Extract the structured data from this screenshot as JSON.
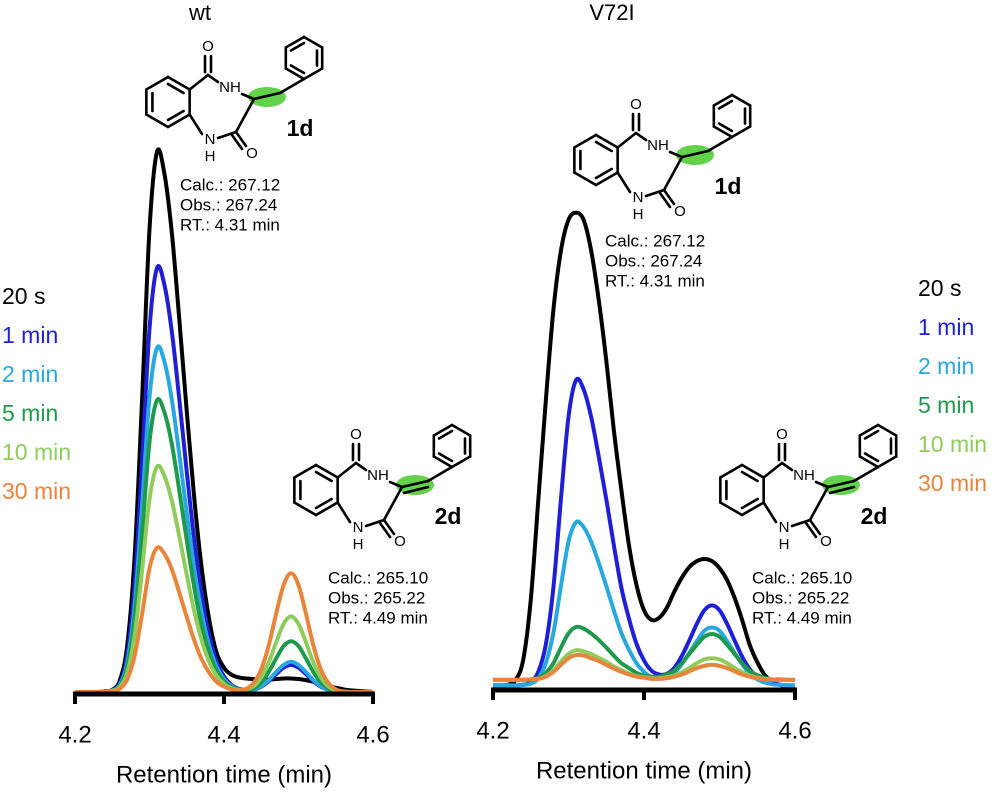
{
  "chart_data": [
    {
      "type": "line",
      "title": "wt",
      "x_label": "Retention time (min)",
      "x": [
        4.2,
        4.21,
        4.22,
        4.23,
        4.24,
        4.25,
        4.26,
        4.27,
        4.28,
        4.29,
        4.3,
        4.31,
        4.32,
        4.33,
        4.34,
        4.35,
        4.36,
        4.37,
        4.38,
        4.39,
        4.4,
        4.41,
        4.42,
        4.43,
        4.44,
        4.45,
        4.46,
        4.47,
        4.48,
        4.49,
        4.5,
        4.51,
        4.52,
        4.53,
        4.54,
        4.55,
        4.56,
        4.57,
        4.58,
        4.59,
        4.6
      ],
      "xlim": [
        4.2,
        4.6
      ],
      "xticks": [
        4.2,
        4.4,
        4.6
      ],
      "ylim": [
        0,
        100
      ],
      "series": [
        {
          "name": "20 s",
          "color": "#000000",
          "values": [
            0,
            0,
            0,
            0,
            0.1,
            0.4,
            2.1,
            8.5,
            25,
            54,
            85.7,
            100,
            96,
            85,
            69,
            52,
            36,
            23,
            13.5,
            7.3,
            4.5,
            3.2,
            2.7,
            2.5,
            2.4,
            2.3,
            2.3,
            2.4,
            2.5,
            2.5,
            2.4,
            2.2,
            1.9,
            1.5,
            1.1,
            0.8,
            0.5,
            0.3,
            0.2,
            0.1,
            0
          ]
        },
        {
          "name": "1 min",
          "color": "#1f1fd6",
          "values": [
            0,
            0,
            0,
            0,
            0,
            0.3,
            1.6,
            6.7,
            19.6,
            42.4,
            67.3,
            78.5,
            75.4,
            66.7,
            54.2,
            40.8,
            28.3,
            18.1,
            10.6,
            5.7,
            2.9,
            1.3,
            0.6,
            0.4,
            0.4,
            1,
            2,
            3.3,
            4.5,
            5,
            4.5,
            3.3,
            2,
            1,
            0.4,
            0.1,
            0,
            0,
            0,
            0,
            0
          ]
        },
        {
          "name": "2 min",
          "color": "#29a8e0",
          "values": [
            0,
            0,
            0,
            0,
            0,
            0.3,
            1.3,
            5.4,
            15.9,
            34.4,
            54.6,
            63.7,
            61.2,
            54.1,
            44,
            33.1,
            22.9,
            14.7,
            8.6,
            4.7,
            2.4,
            1.1,
            0.5,
            0.3,
            0.4,
            1.1,
            2.2,
            3.7,
            5,
            5.6,
            5,
            3.7,
            2.2,
            1.1,
            0.4,
            0.1,
            0,
            0,
            0,
            0,
            0
          ]
        },
        {
          "name": "5 min",
          "color": "#1f9a4c",
          "values": [
            0,
            0,
            0,
            0,
            0,
            0.2,
            1.1,
            4.6,
            13.5,
            29.2,
            46.3,
            54,
            51.8,
            45.9,
            37.3,
            28.1,
            19.4,
            12.4,
            7.3,
            3.9,
            2,
            0.9,
            0.5,
            0.4,
            0.7,
            1.8,
            3.7,
            6.2,
            8.5,
            9.4,
            8.5,
            6.2,
            3.7,
            1.8,
            0.7,
            0.2,
            0.1,
            0,
            0,
            0,
            0
          ]
        },
        {
          "name": "10 min",
          "color": "#8fcc5c",
          "values": [
            0,
            0,
            0,
            0,
            0,
            0.2,
            0.9,
            3.5,
            10.4,
            22.5,
            35.7,
            41.7,
            40,
            35.4,
            28.8,
            21.7,
            15,
            9.6,
            5.6,
            3,
            1.5,
            0.7,
            0.4,
            0.5,
            1.1,
            2.7,
            5.5,
            9.2,
            12.6,
            14,
            12.6,
            9.2,
            5.5,
            2.7,
            1.1,
            0.3,
            0.1,
            0,
            0,
            0,
            0
          ]
        },
        {
          "name": "30 min",
          "color": "#e8843c",
          "values": [
            0,
            0,
            0,
            0,
            0,
            0.1,
            0.6,
            2.3,
            6.7,
            14.4,
            22.9,
            26.7,
            25.6,
            22.7,
            18.4,
            13.9,
            9.6,
            6.1,
            3.6,
            1.9,
            1,
            0.5,
            0.3,
            0.6,
            1.7,
            4.2,
            8.6,
            14.5,
            19.8,
            22,
            19.8,
            14.5,
            8.6,
            4.2,
            1.7,
            0.5,
            0.1,
            0,
            0,
            0,
            0
          ]
        }
      ],
      "structures": [
        {
          "label": "1d",
          "atoms": [
            "O",
            "NH",
            "N",
            "H",
            "O"
          ],
          "annotation": [
            "Calc.: 267.12",
            "Obs.: 267.24",
            "RT.: 4.31 min"
          ]
        },
        {
          "label": "2d",
          "atoms": [
            "O",
            "NH",
            "N",
            "H",
            "O"
          ],
          "annotation": [
            "Calc.: 265.10",
            "Obs.: 265.22",
            "RT.: 4.49 min"
          ]
        }
      ]
    },
    {
      "type": "line",
      "title": "V72I",
      "x_label": "Retention time (min)",
      "x": [
        4.2,
        4.21,
        4.22,
        4.23,
        4.24,
        4.25,
        4.26,
        4.27,
        4.28,
        4.29,
        4.3,
        4.31,
        4.32,
        4.33,
        4.34,
        4.35,
        4.36,
        4.37,
        4.38,
        4.39,
        4.4,
        4.41,
        4.42,
        4.43,
        4.44,
        4.45,
        4.46,
        4.47,
        4.48,
        4.49,
        4.5,
        4.51,
        4.52,
        4.53,
        4.54,
        4.55,
        4.56,
        4.57,
        4.58,
        4.59,
        4.6
      ],
      "xlim": [
        4.2,
        4.6
      ],
      "xticks": [
        4.2,
        4.4,
        4.6
      ],
      "ylim": [
        0,
        100
      ],
      "series": [
        {
          "name": "20 s",
          "color": "#000000",
          "values": [
            0.4,
            0.4,
            0.6,
            1.5,
            5.2,
            16.3,
            34.8,
            53.3,
            70,
            81,
            86.7,
            88,
            86.7,
            81,
            71.9,
            60.7,
            47.8,
            36.7,
            26.5,
            19.1,
            14.4,
            12.6,
            13,
            14.8,
            17.8,
            20.4,
            22.4,
            23.5,
            23.9,
            23.5,
            22.2,
            20,
            16.7,
            12.6,
            8,
            4.8,
            2.4,
            1.1,
            0.6,
            0.2,
            0.1
          ]
        },
        {
          "name": "1 min",
          "color": "#1f1fd6",
          "values": [
            0.5,
            0.5,
            0.5,
            0.5,
            0.6,
            1.1,
            3,
            8.1,
            18.6,
            35,
            50.2,
            57,
            55.3,
            50.2,
            42.9,
            35,
            26.5,
            18.6,
            12.9,
            8.2,
            5.1,
            3.2,
            2.5,
            2.6,
            3.7,
            5.9,
            8.8,
            11.9,
            14.4,
            15.3,
            14.4,
            11.9,
            8.8,
            5.8,
            3.5,
            2,
            1.2,
            0.8,
            0.6,
            0.5,
            0.5
          ]
        },
        {
          "name": "2 min",
          "color": "#29a8e0",
          "values": [
            0.5,
            0.5,
            0.5,
            0.5,
            0.6,
            0.8,
            1.8,
            4.6,
            10.2,
            18.9,
            27.1,
            30.7,
            29.8,
            27.1,
            23.2,
            18.9,
            14.4,
            10.2,
            7.1,
            4.6,
            3,
            2,
            1.7,
            1.9,
            2.8,
            4.4,
            6.5,
            8.7,
            10.6,
            11.2,
            10.6,
            8.7,
            6.5,
            4.4,
            2.6,
            1.6,
            1,
            0.7,
            0.6,
            0.5,
            0.5
          ]
        },
        {
          "name": "5 min",
          "color": "#1f9a4c",
          "values": [
            1.5,
            1.5,
            1.5,
            1.5,
            1.5,
            1.6,
            1.9,
            2.8,
            4.6,
            7.5,
            10.1,
            11.3,
            11,
            10.1,
            8.9,
            7.5,
            6,
            4.6,
            3.7,
            2.8,
            2.3,
            2.1,
            2.1,
            2.5,
            3.2,
            4.6,
            6.3,
            8,
            9.5,
            10,
            9.5,
            8,
            6.3,
            4.6,
            3.2,
            2.4,
            1.9,
            1.6,
            1.6,
            1.5,
            1.5
          ]
        },
        {
          "name": "10 min",
          "color": "#8fcc5c",
          "values": [
            1.5,
            1.5,
            1.5,
            1.5,
            1.5,
            1.6,
            1.7,
            2.2,
            3.3,
            4.9,
            6.3,
            7,
            6.8,
            6.3,
            5.6,
            4.9,
            4,
            3.3,
            2.7,
            2.2,
            2,
            1.8,
            1.8,
            2,
            2.3,
            2.9,
            3.7,
            4.6,
            5.3,
            5.5,
            5.3,
            4.6,
            3.7,
            2.9,
            2.3,
            1.9,
            1.7,
            1.6,
            1.5,
            1.5,
            1.5
          ]
        },
        {
          "name": "30 min",
          "color": "#e8843c",
          "values": [
            1.5,
            1.5,
            1.5,
            1.5,
            1.5,
            1.6,
            1.7,
            2.1,
            3,
            4.3,
            5.5,
            6.1,
            6,
            5.5,
            5,
            4.3,
            3.6,
            3,
            2.5,
            2.1,
            1.9,
            1.7,
            1.7,
            1.8,
            2.1,
            2.5,
            3.1,
            3.7,
            4.1,
            4.3,
            4.1,
            3.7,
            3.1,
            2.5,
            2.1,
            1.8,
            1.6,
            1.5,
            1.5,
            1.5,
            1.5
          ]
        }
      ],
      "structures": [
        {
          "label": "1d",
          "atoms": [
            "O",
            "NH",
            "N",
            "H",
            "O"
          ],
          "annotation": [
            "Calc.: 267.12",
            "Obs.: 267.24",
            "RT.: 4.31 min"
          ]
        },
        {
          "label": "2d",
          "atoms": [
            "O",
            "NH",
            "N",
            "H",
            "O"
          ],
          "annotation": [
            "Calc.: 265.10",
            "Obs.: 265.22",
            "RT.: 4.49 min"
          ]
        }
      ]
    }
  ]
}
